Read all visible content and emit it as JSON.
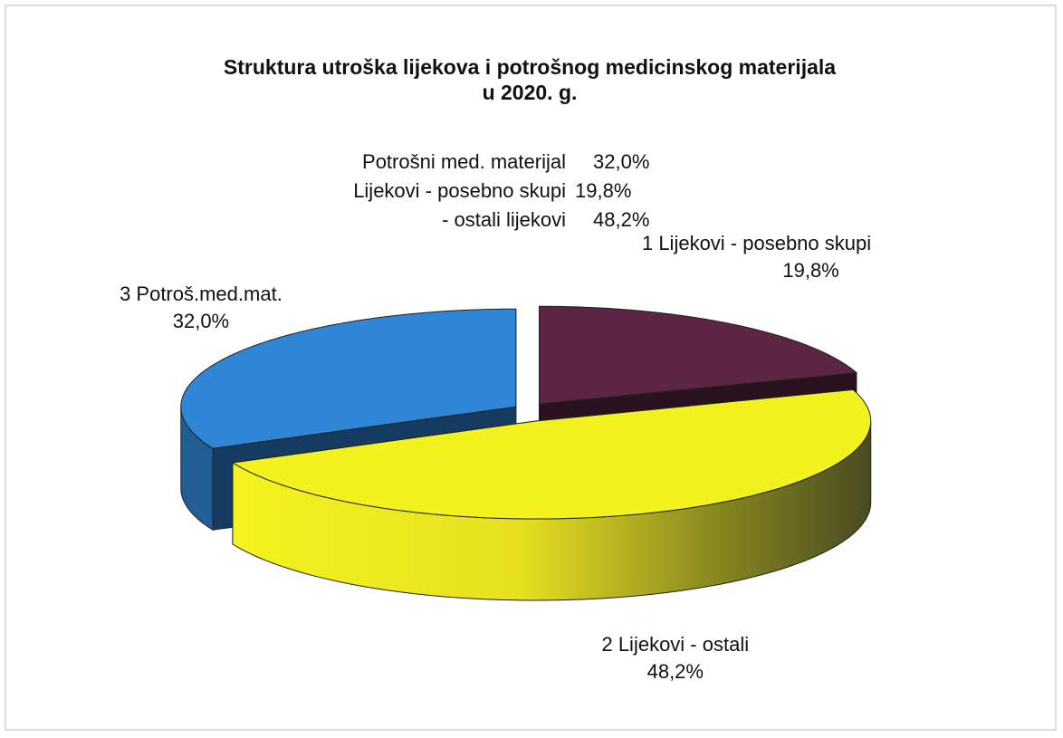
{
  "chart_data": {
    "type": "pie3d",
    "title": "Struktura utroška lijekova i potrošnog medicinskog materijala",
    "subtitle": "u 2020. g.",
    "annotations": [
      {
        "text": "Potrošni med. materijal",
        "label": "32,0%"
      },
      {
        "text": "Lijekovi - posebno skupi",
        "label": "19,8%"
      },
      {
        "text": "- ostali lijekovi",
        "label": "48,2%"
      }
    ],
    "categories": [
      "1 Lijekovi - posebno skupi",
      "2 Lijekovi - ostali",
      "3 Potroš.med.mat."
    ],
    "values": [
      19.8,
      48.2,
      32.0
    ],
    "value_labels": [
      "19,8%",
      "48,2%",
      "32,0%"
    ],
    "colors": [
      "#5c2544",
      "#f2f21e",
      "#2f86d6"
    ]
  }
}
